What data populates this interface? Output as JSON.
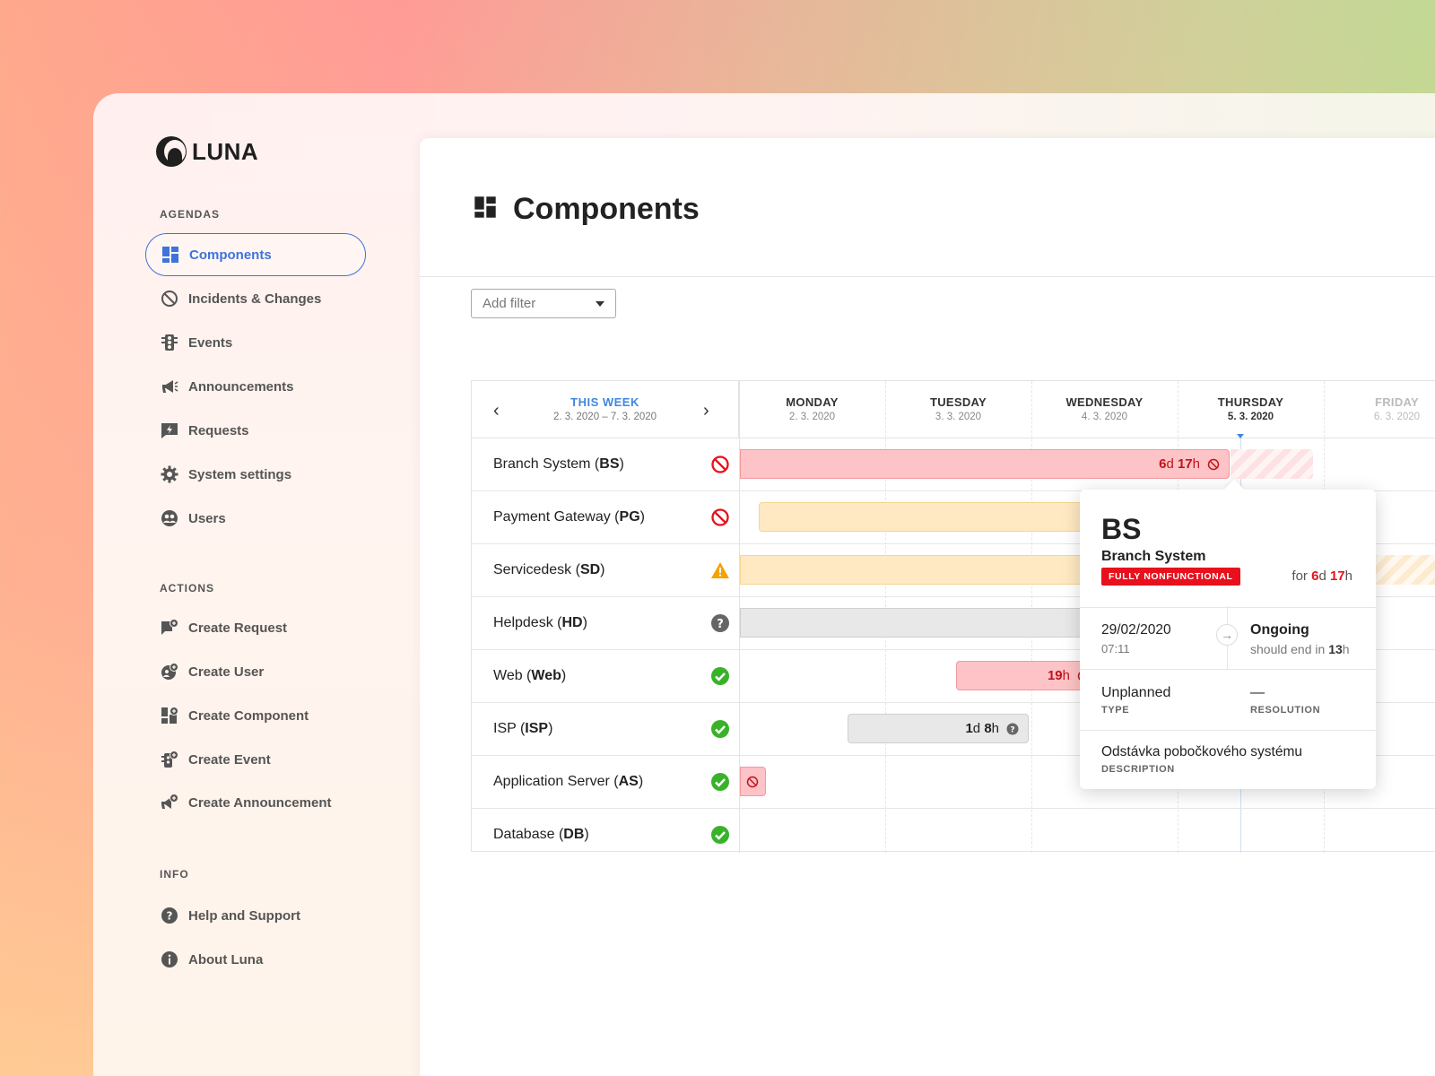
{
  "app": {
    "name": "LUNA"
  },
  "sidebar": {
    "agendas_label": "AGENDAS",
    "agendas": [
      {
        "label": "Components",
        "icon": "components-icon",
        "active": true
      },
      {
        "label": "Incidents & Changes",
        "icon": "ban-icon"
      },
      {
        "label": "Events",
        "icon": "traffic-light-icon"
      },
      {
        "label": "Announcements",
        "icon": "megaphone-icon"
      },
      {
        "label": "Requests",
        "icon": "lightning-chat-icon"
      },
      {
        "label": "System settings",
        "icon": "gear-icon"
      },
      {
        "label": "Users",
        "icon": "users-icon"
      }
    ],
    "actions_label": "ACTIONS",
    "actions": [
      {
        "label": "Create Request",
        "icon": "create-request-icon"
      },
      {
        "label": "Create User",
        "icon": "create-user-icon"
      },
      {
        "label": "Create Component",
        "icon": "create-component-icon"
      },
      {
        "label": "Create Event",
        "icon": "create-event-icon"
      },
      {
        "label": "Create Announcement",
        "icon": "create-announcement-icon"
      }
    ],
    "info_label": "INFO",
    "info": [
      {
        "label": "Help and Support",
        "icon": "help-icon"
      },
      {
        "label": "About Luna",
        "icon": "info-icon"
      }
    ]
  },
  "page": {
    "title": "Components"
  },
  "filter": {
    "placeholder": "Add filter"
  },
  "timeline": {
    "week_label": "THIS WEEK",
    "week_range": "2. 3. 2020 – 7. 3. 2020",
    "days": [
      {
        "name": "MONDAY",
        "date": "2. 3. 2020"
      },
      {
        "name": "TUESDAY",
        "date": "3. 3. 2020"
      },
      {
        "name": "WEDNESDAY",
        "date": "4. 3. 2020"
      },
      {
        "name": "THURSDAY",
        "date": "5. 3. 2020",
        "today": true
      },
      {
        "name": "FRIDAY",
        "date": "6. 3. 2020",
        "dim": true
      }
    ],
    "rows": [
      {
        "name": "Branch System",
        "code": "BS",
        "status": "fully-nonfunctional",
        "bar_label_num1": "6",
        "bar_label_unit1": "d",
        "bar_label_num2": "17",
        "bar_label_unit2": "h"
      },
      {
        "name": "Payment Gateway",
        "code": "PG",
        "status": "fully-nonfunctional"
      },
      {
        "name": "Servicedesk",
        "code": "SD",
        "status": "warning"
      },
      {
        "name": "Helpdesk",
        "code": "HD",
        "status": "unknown"
      },
      {
        "name": "Web",
        "code": "Web",
        "status": "ok",
        "bar_label_num1": "19",
        "bar_label_unit1": "h"
      },
      {
        "name": "ISP",
        "code": "ISP",
        "status": "ok",
        "bar_label_num1": "1",
        "bar_label_unit1": "d",
        "bar_label_num2": "8",
        "bar_label_unit2": "h"
      },
      {
        "name": "Application Server",
        "code": "AS",
        "status": "ok"
      },
      {
        "name": "Database",
        "code": "DB",
        "status": "ok"
      }
    ]
  },
  "popup": {
    "code": "BS",
    "name": "Branch System",
    "badge": "FULLY NONFUNCTIONAL",
    "for_prefix": "for",
    "dur_d": "6",
    "dur_d_unit": "d",
    "dur_h": "17",
    "dur_h_unit": "h",
    "start_date": "29/02/2020",
    "start_time": "07:11",
    "state": "Ongoing",
    "end_prefix": "should end in",
    "end_value": "13",
    "end_unit": "h",
    "type_value": "Unplanned",
    "type_label": "TYPE",
    "resolution_value": "—",
    "resolution_label": "RESOLUTION",
    "description": "Odstávka pobočkového systému",
    "description_label": "DESCRIPTION"
  },
  "colors": {
    "accent": "#3f73d9",
    "link": "#3f87e0",
    "danger": "#e8101c",
    "warning": "#f5a300",
    "ok": "#39b22a"
  }
}
